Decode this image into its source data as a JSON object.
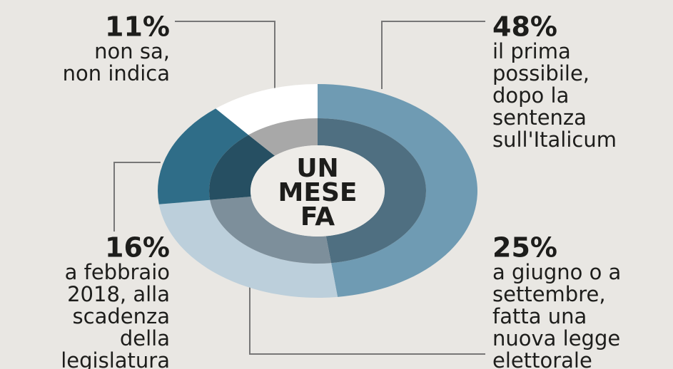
{
  "chart_data": {
    "type": "donut",
    "center_label": [
      "UN",
      "MESE",
      "FA"
    ],
    "categories": [
      [
        "il prima",
        "possibile,",
        "dopo la",
        "sentenza",
        "sull'Italicum"
      ],
      [
        "a giugno o a",
        "settembre,",
        "fatta una",
        "nuova legge",
        "elettorale"
      ],
      [
        "a febbraio",
        "2018, alla",
        "scadenza",
        "della",
        "legislatura"
      ],
      [
        "non sa,",
        "non indica"
      ]
    ],
    "values": [
      48,
      25,
      16,
      11
    ],
    "value_labels": [
      "48%",
      "25%",
      "16%",
      "11%"
    ],
    "colors": [
      "#6f9bb3",
      "#bccfdb",
      "#2f6d88",
      "#ffffff"
    ],
    "inner_colors": [
      "#4f6f81",
      "#7d8f9b",
      "#264f62",
      "#a8a8a8"
    ]
  }
}
